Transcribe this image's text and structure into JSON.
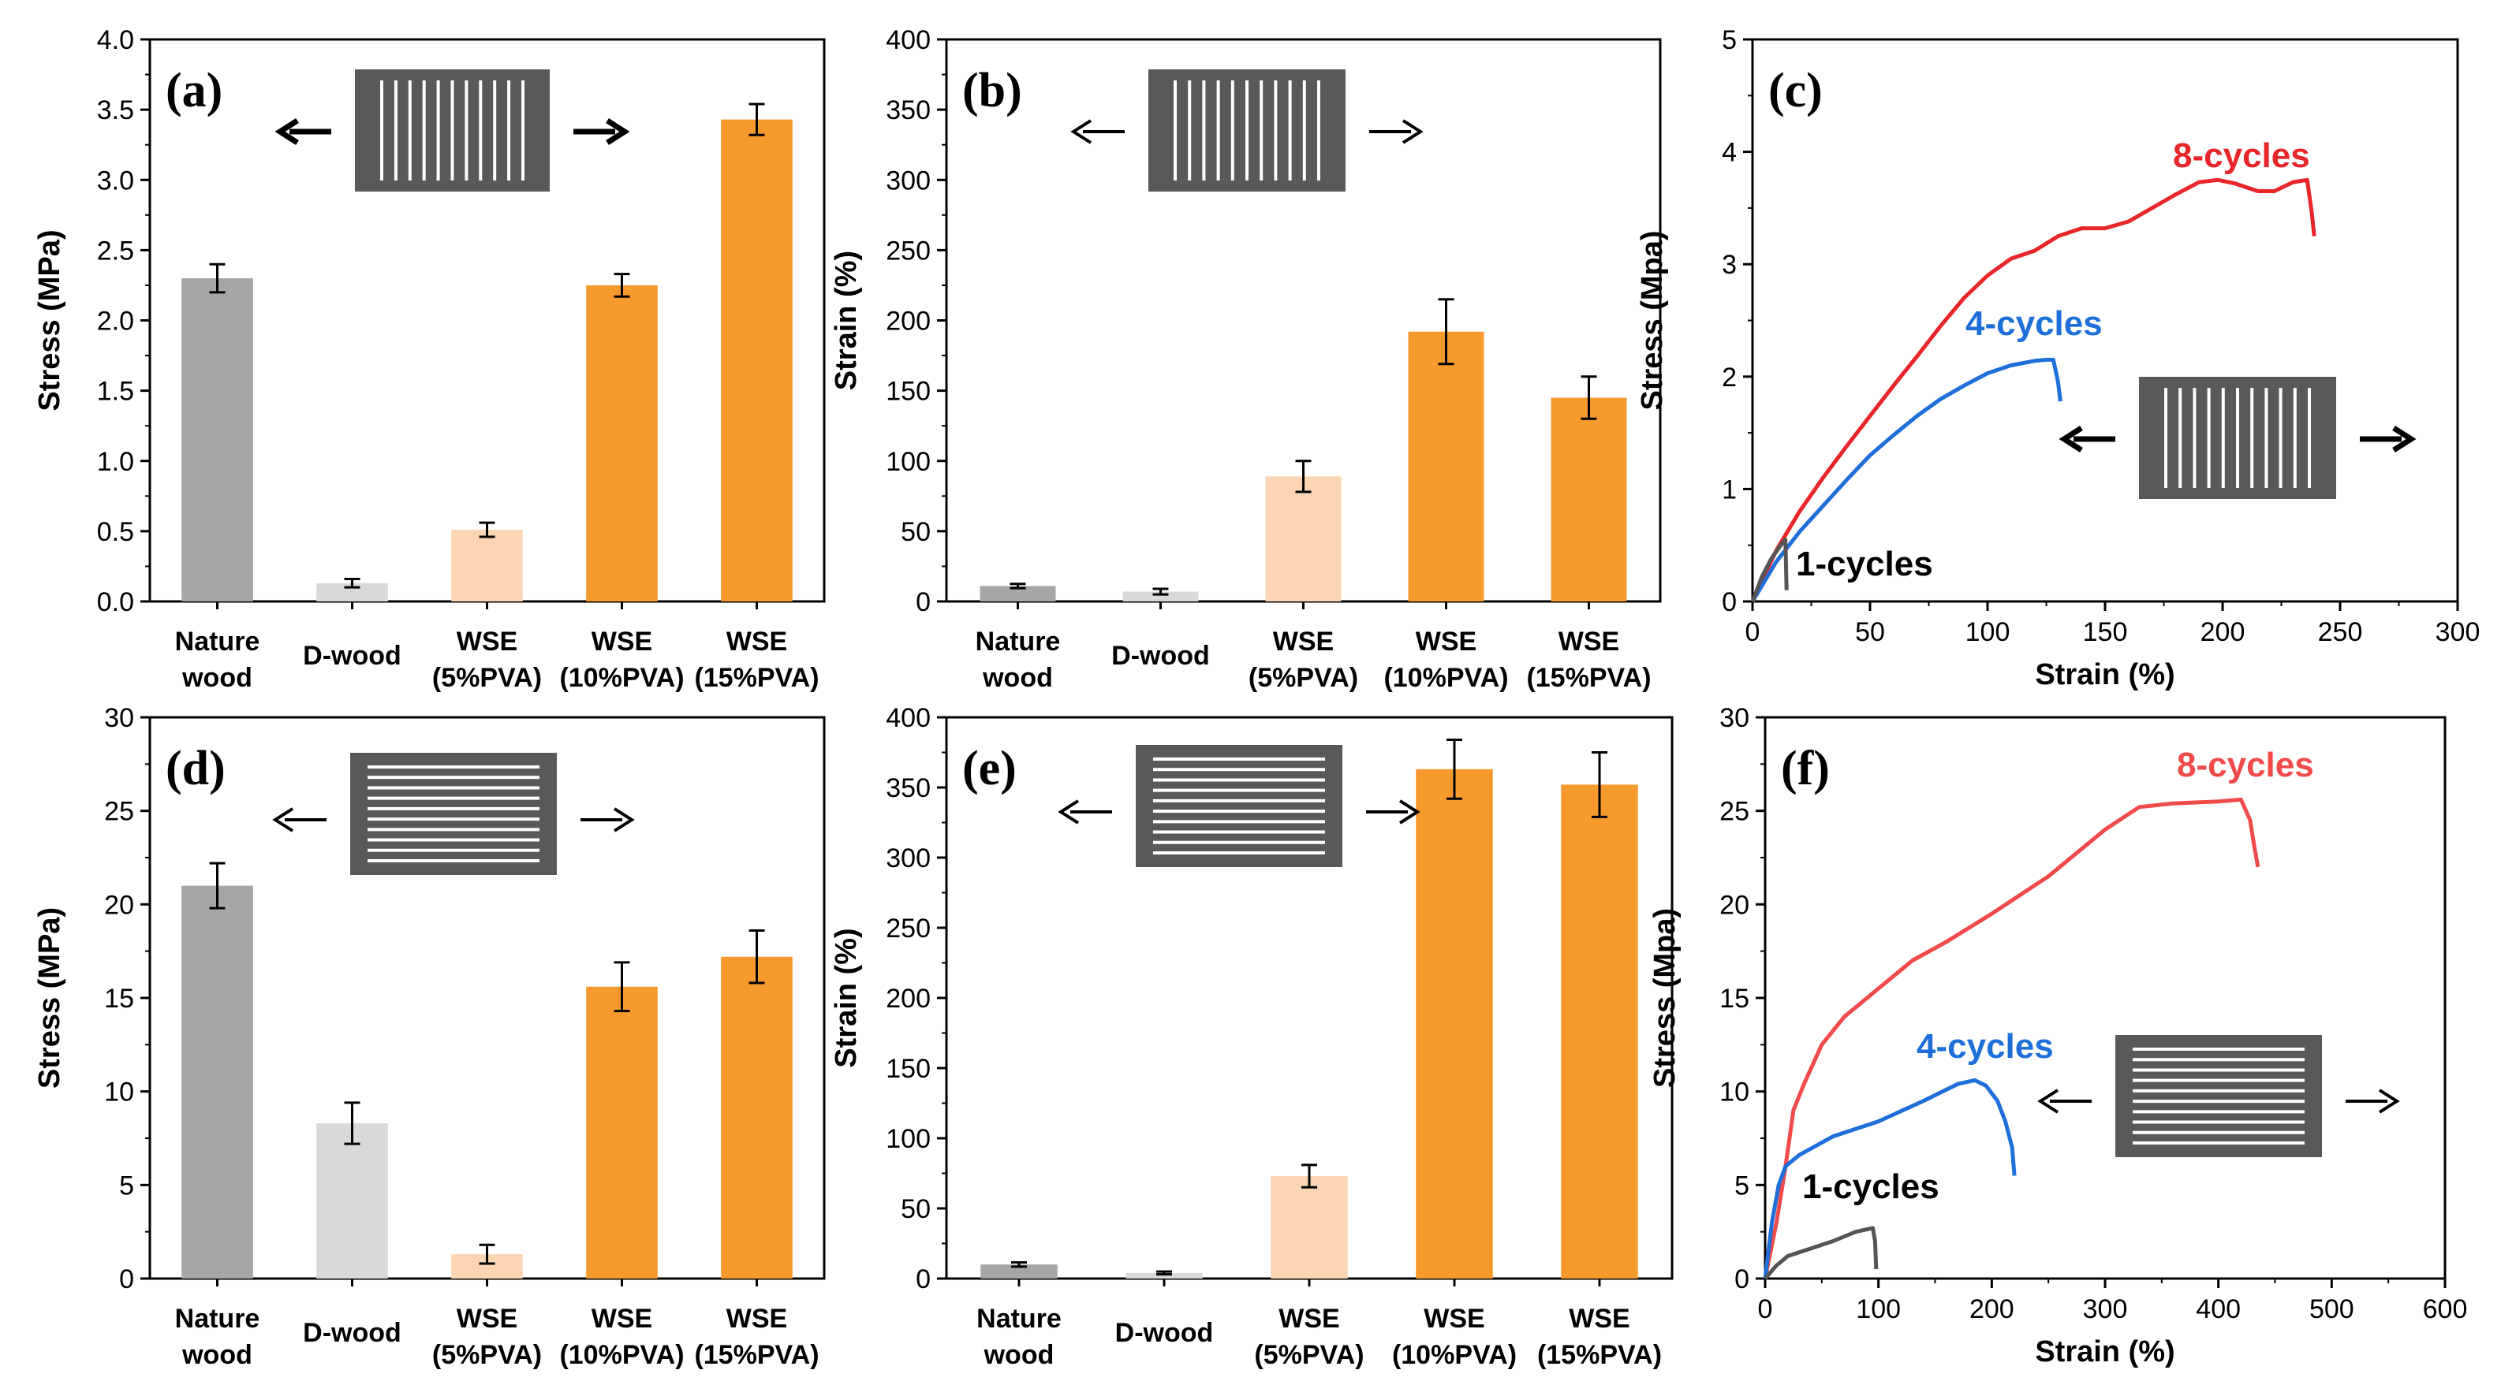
{
  "chart_data": [
    {
      "panel_label": "(a)",
      "type": "bar",
      "categories": [
        [
          "Nature",
          "wood"
        ],
        [
          "D-wood"
        ],
        [
          "WSE",
          "(5%PVA)"
        ],
        [
          "WSE",
          "(10%PVA)"
        ],
        [
          "WSE",
          "(15%PVA)"
        ]
      ],
      "values": [
        2.3,
        0.13,
        0.51,
        2.25,
        3.43
      ],
      "errors": [
        0.1,
        0.03,
        0.05,
        0.08,
        0.11
      ],
      "bar_colors": [
        "#a6a6a6",
        "#d9d9d9",
        "#fcd5b4",
        "#f79a2e",
        "#f79a2e"
      ],
      "ylabel": "Stress (MPa)",
      "ylim": [
        0,
        4.0
      ],
      "yticks": [
        "0.0",
        "0.5",
        "1.0",
        "1.5",
        "2.0",
        "2.5",
        "3.0",
        "3.5",
        "4.0"
      ],
      "inset": "vertical-grooves"
    },
    {
      "panel_label": "(b)",
      "type": "bar",
      "categories": [
        [
          "Nature",
          "wood"
        ],
        [
          "D-wood"
        ],
        [
          "WSE",
          "(5%PVA)"
        ],
        [
          "WSE",
          "(10%PVA)"
        ],
        [
          "WSE",
          "(15%PVA)"
        ]
      ],
      "values": [
        11,
        7,
        89,
        192,
        145
      ],
      "errors": [
        1.5,
        2,
        11,
        23,
        15
      ],
      "bar_colors": [
        "#a6a6a6",
        "#d9d9d9",
        "#fcd5b4",
        "#f79a2e",
        "#f79a2e"
      ],
      "ylabel": "Strain (%)",
      "ylim": [
        0,
        400
      ],
      "yticks": [
        "0",
        "50",
        "100",
        "150",
        "200",
        "250",
        "300",
        "350",
        "400"
      ],
      "inset": "vertical-grooves"
    },
    {
      "panel_label": "(c)",
      "type": "line",
      "xlabel": "Strain (%)",
      "ylabel": "Stress (Mpa)",
      "xlim": [
        0,
        300
      ],
      "ylim": [
        0,
        5
      ],
      "xticks": [
        "0",
        "50",
        "100",
        "150",
        "200",
        "250",
        "300"
      ],
      "yticks": [
        "0",
        "1",
        "2",
        "3",
        "4",
        "5"
      ],
      "inset": "vertical-grooves",
      "series": [
        {
          "name": "8-cycles",
          "color": "#e8262a",
          "points": [
            [
              0,
              0
            ],
            [
              10,
              0.45
            ],
            [
              20,
              0.8
            ],
            [
              30,
              1.1
            ],
            [
              40,
              1.38
            ],
            [
              50,
              1.65
            ],
            [
              60,
              1.92
            ],
            [
              70,
              2.18
            ],
            [
              80,
              2.45
            ],
            [
              90,
              2.7
            ],
            [
              100,
              2.9
            ],
            [
              110,
              3.05
            ],
            [
              120,
              3.12
            ],
            [
              130,
              3.25
            ],
            [
              140,
              3.32
            ],
            [
              150,
              3.32
            ],
            [
              160,
              3.38
            ],
            [
              170,
              3.5
            ],
            [
              180,
              3.62
            ],
            [
              190,
              3.73
            ],
            [
              198,
              3.75
            ],
            [
              205,
              3.72
            ],
            [
              215,
              3.65
            ],
            [
              222,
              3.65
            ],
            [
              230,
              3.73
            ],
            [
              236,
              3.75
            ],
            [
              238,
              3.45
            ],
            [
              239,
              3.25
            ]
          ]
        },
        {
          "name": "4-cycles",
          "color": "#1e6fd9",
          "points": [
            [
              0,
              0
            ],
            [
              10,
              0.35
            ],
            [
              20,
              0.62
            ],
            [
              30,
              0.85
            ],
            [
              40,
              1.08
            ],
            [
              50,
              1.3
            ],
            [
              60,
              1.48
            ],
            [
              70,
              1.65
            ],
            [
              80,
              1.8
            ],
            [
              90,
              1.92
            ],
            [
              100,
              2.03
            ],
            [
              110,
              2.1
            ],
            [
              120,
              2.14
            ],
            [
              125,
              2.15
            ],
            [
              128,
              2.15
            ],
            [
              130,
              1.95
            ],
            [
              131,
              1.78
            ]
          ]
        },
        {
          "name": "1-cycles",
          "color": "#555555",
          "points": [
            [
              0,
              0
            ],
            [
              4,
              0.22
            ],
            [
              8,
              0.38
            ],
            [
              12,
              0.5
            ],
            [
              14,
              0.55
            ],
            [
              14.5,
              0.1
            ]
          ]
        }
      ],
      "annotations": [
        "8-cycles",
        "4-cycles",
        "1-cycles"
      ]
    },
    {
      "panel_label": "(d)",
      "type": "bar",
      "categories": [
        [
          "Nature",
          "wood"
        ],
        [
          "D-wood"
        ],
        [
          "WSE",
          "(5%PVA)"
        ],
        [
          "WSE",
          "(10%PVA)"
        ],
        [
          "WSE",
          "(15%PVA)"
        ]
      ],
      "values": [
        21.0,
        8.3,
        1.3,
        15.6,
        17.2
      ],
      "errors": [
        1.2,
        1.1,
        0.5,
        1.3,
        1.4
      ],
      "bar_colors": [
        "#a6a6a6",
        "#d9d9d9",
        "#fcd5b4",
        "#f79a2e",
        "#f79a2e"
      ],
      "ylabel": "Stress (MPa)",
      "ylim": [
        0,
        30
      ],
      "yticks": [
        "0",
        "5",
        "10",
        "15",
        "20",
        "25",
        "30"
      ],
      "inset": "horizontal-grooves"
    },
    {
      "panel_label": "(e)",
      "type": "bar",
      "categories": [
        [
          "Nature",
          "wood"
        ],
        [
          "D-wood"
        ],
        [
          "WSE",
          "(5%PVA)"
        ],
        [
          "WSE",
          "(10%PVA)"
        ],
        [
          "WSE",
          "(15%PVA)"
        ]
      ],
      "values": [
        10,
        4,
        73,
        363,
        352
      ],
      "errors": [
        1.5,
        1,
        8,
        21,
        23
      ],
      "bar_colors": [
        "#a6a6a6",
        "#d9d9d9",
        "#fcd5b4",
        "#f79a2e",
        "#f79a2e"
      ],
      "ylabel": "Strain (%)",
      "ylim": [
        0,
        400
      ],
      "yticks": [
        "0",
        "50",
        "100",
        "150",
        "200",
        "250",
        "300",
        "350",
        "400"
      ],
      "inset": "horizontal-grooves"
    },
    {
      "panel_label": "(f)",
      "type": "line",
      "xlabel": "Strain (%)",
      "ylabel": "Stress (Mpa)",
      "xlim": [
        0,
        600
      ],
      "ylim": [
        0,
        30
      ],
      "xticks": [
        "0",
        "100",
        "200",
        "300",
        "400",
        "500",
        "600"
      ],
      "yticks": [
        "0",
        "5",
        "10",
        "15",
        "20",
        "25",
        "30"
      ],
      "inset": "horizontal-grooves",
      "series": [
        {
          "name": "8-cycles",
          "color": "#f04a4a",
          "points": [
            [
              0,
              0
            ],
            [
              10,
              3
            ],
            [
              18,
              6
            ],
            [
              25,
              9
            ],
            [
              35,
              10.5
            ],
            [
              50,
              12.5
            ],
            [
              70,
              14
            ],
            [
              100,
              15.5
            ],
            [
              130,
              17
            ],
            [
              160,
              18
            ],
            [
              200,
              19.5
            ],
            [
              250,
              21.5
            ],
            [
              300,
              24
            ],
            [
              330,
              25.2
            ],
            [
              360,
              25.4
            ],
            [
              400,
              25.5
            ],
            [
              420,
              25.6
            ],
            [
              428,
              24.5
            ],
            [
              432,
              23
            ],
            [
              435,
              22
            ]
          ]
        },
        {
          "name": "4-cycles",
          "color": "#1e6fd9",
          "points": [
            [
              0,
              0
            ],
            [
              6,
              3
            ],
            [
              12,
              5
            ],
            [
              18,
              6
            ],
            [
              30,
              6.6
            ],
            [
              60,
              7.6
            ],
            [
              100,
              8.4
            ],
            [
              140,
              9.5
            ],
            [
              170,
              10.4
            ],
            [
              185,
              10.6
            ],
            [
              195,
              10.3
            ],
            [
              205,
              9.5
            ],
            [
              212,
              8.4
            ],
            [
              218,
              7
            ],
            [
              220,
              5.5
            ]
          ]
        },
        {
          "name": "1-cycles",
          "color": "#555555",
          "points": [
            [
              0,
              0
            ],
            [
              10,
              0.7
            ],
            [
              20,
              1.2
            ],
            [
              40,
              1.6
            ],
            [
              60,
              2.0
            ],
            [
              80,
              2.5
            ],
            [
              95,
              2.7
            ],
            [
              97,
              2.0
            ],
            [
              98,
              0.5
            ]
          ]
        }
      ],
      "annotations": [
        "8-cycles",
        "4-cycles",
        "1-cycles"
      ]
    }
  ]
}
